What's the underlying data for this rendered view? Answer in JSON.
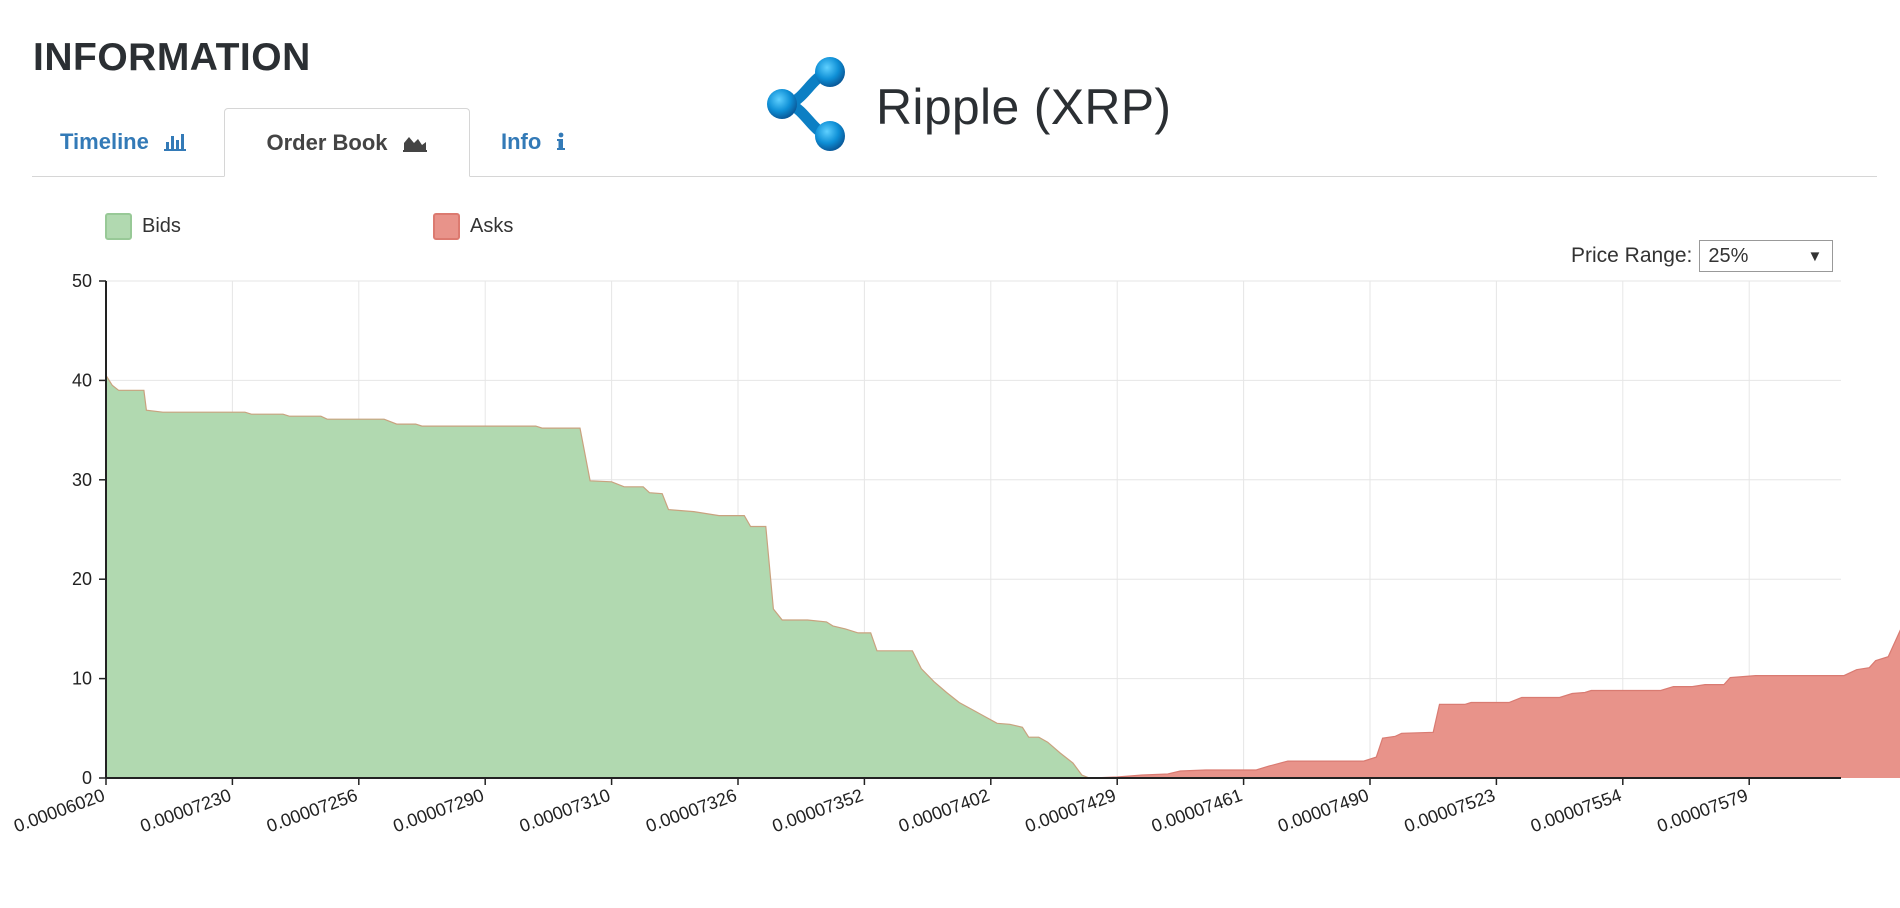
{
  "header": {
    "title": "INFORMATION"
  },
  "tabs": [
    {
      "label": "Timeline",
      "icon": "bar-chart-icon",
      "active": false
    },
    {
      "label": "Order Book",
      "icon": "area-chart-icon",
      "active": true
    },
    {
      "label": "Info",
      "icon": "info-icon",
      "active": false
    }
  ],
  "coin": {
    "name": "Ripple (XRP)",
    "logo": "ripple-logo"
  },
  "controls": {
    "price_range_label": "Price Range:",
    "price_range_value": "25%"
  },
  "colors": {
    "bids_fill": "#b1d9b0",
    "bids_stroke": "#c9a27f",
    "asks_fill": "#e8938a",
    "link": "#337ab7"
  },
  "chart_data": {
    "type": "area",
    "legend": [
      "Bids",
      "Asks"
    ],
    "legend_position": "top-left",
    "grid": true,
    "ylim": [
      0,
      50
    ],
    "yticks": [
      0,
      10,
      20,
      30,
      40,
      50
    ],
    "xtick_labels": [
      "0.00006020",
      "0.00007230",
      "0.00007256",
      "0.00007290",
      "0.00007310",
      "0.00007326",
      "0.00007352",
      "0.00007402",
      "0.00007429",
      "0.00007461",
      "0.00007490",
      "0.00007523",
      "0.00007554",
      "0.00007579"
    ],
    "x_index_range": [
      0,
      13.75
    ],
    "series": [
      {
        "name": "Bids",
        "points": [
          [
            0,
            40.5
          ],
          [
            0.05,
            39.5
          ],
          [
            0.1,
            39
          ],
          [
            0.3,
            39
          ],
          [
            0.32,
            37
          ],
          [
            0.45,
            36.8
          ],
          [
            1.1,
            36.8
          ],
          [
            1.15,
            36.6
          ],
          [
            1.4,
            36.6
          ],
          [
            1.45,
            36.4
          ],
          [
            1.7,
            36.4
          ],
          [
            1.75,
            36.1
          ],
          [
            2.2,
            36.1
          ],
          [
            2.3,
            35.6
          ],
          [
            2.45,
            35.6
          ],
          [
            2.5,
            35.4
          ],
          [
            3.4,
            35.4
          ],
          [
            3.45,
            35.2
          ],
          [
            3.47,
            35.2
          ],
          [
            3.5,
            35.2
          ],
          [
            3.75,
            35.2
          ],
          [
            3.83,
            29.9
          ],
          [
            4.0,
            29.8
          ],
          [
            4.1,
            29.3
          ],
          [
            4.25,
            29.3
          ],
          [
            4.3,
            28.7
          ],
          [
            4.4,
            28.6
          ],
          [
            4.45,
            27
          ],
          [
            4.55,
            26.9
          ],
          [
            4.65,
            26.8
          ],
          [
            4.75,
            26.6
          ],
          [
            4.85,
            26.4
          ],
          [
            5.05,
            26.4
          ],
          [
            5.1,
            25.3
          ],
          [
            5.22,
            25.3
          ],
          [
            5.28,
            17
          ],
          [
            5.35,
            15.9
          ],
          [
            5.55,
            15.9
          ],
          [
            5.7,
            15.7
          ],
          [
            5.75,
            15.3
          ],
          [
            5.85,
            15
          ],
          [
            5.95,
            14.6
          ],
          [
            6.05,
            14.6
          ],
          [
            6.1,
            12.8
          ],
          [
            6.38,
            12.8
          ],
          [
            6.45,
            11
          ],
          [
            6.55,
            9.7
          ],
          [
            6.65,
            8.6
          ],
          [
            6.75,
            7.6
          ],
          [
            6.85,
            6.9
          ],
          [
            6.95,
            6.2
          ],
          [
            7.05,
            5.5
          ],
          [
            7.15,
            5.4
          ],
          [
            7.25,
            5.1
          ],
          [
            7.3,
            4.1
          ],
          [
            7.38,
            4.1
          ],
          [
            7.45,
            3.6
          ],
          [
            7.55,
            2.5
          ],
          [
            7.65,
            1.5
          ],
          [
            7.72,
            0.3
          ],
          [
            7.78,
            0
          ],
          [
            7.8,
            0
          ]
        ]
      },
      {
        "name": "Asks",
        "points": [
          [
            7.8,
            0
          ],
          [
            8.0,
            0.1
          ],
          [
            8.2,
            0.3
          ],
          [
            8.4,
            0.4
          ],
          [
            8.5,
            0.7
          ],
          [
            8.7,
            0.8
          ],
          [
            9.1,
            0.8
          ],
          [
            9.2,
            1.2
          ],
          [
            9.35,
            1.7
          ],
          [
            9.95,
            1.7
          ],
          [
            10.05,
            2.1
          ],
          [
            10.1,
            4
          ],
          [
            10.2,
            4.2
          ],
          [
            10.25,
            4.5
          ],
          [
            10.5,
            4.6
          ],
          [
            10.55,
            7.4
          ],
          [
            10.75,
            7.4
          ],
          [
            10.8,
            7.6
          ],
          [
            11.1,
            7.6
          ],
          [
            11.2,
            8.1
          ],
          [
            11.5,
            8.1
          ],
          [
            11.6,
            8.5
          ],
          [
            11.7,
            8.6
          ],
          [
            11.75,
            8.8
          ],
          [
            12.3,
            8.8
          ],
          [
            12.4,
            9.2
          ],
          [
            12.55,
            9.2
          ],
          [
            12.65,
            9.4
          ],
          [
            12.8,
            9.4
          ],
          [
            12.85,
            10.1
          ],
          [
            12.95,
            10.2
          ],
          [
            13.05,
            10.3
          ],
          [
            13.75,
            10.3
          ],
          [
            13.85,
            10.9
          ],
          [
            13.95,
            11.1
          ],
          [
            14.0,
            11.8
          ],
          [
            14.1,
            12.2
          ],
          [
            14.2,
            15
          ],
          [
            14.4,
            15
          ],
          [
            14.5,
            15.2
          ],
          [
            14.58,
            0.3
          ]
        ]
      }
    ]
  }
}
